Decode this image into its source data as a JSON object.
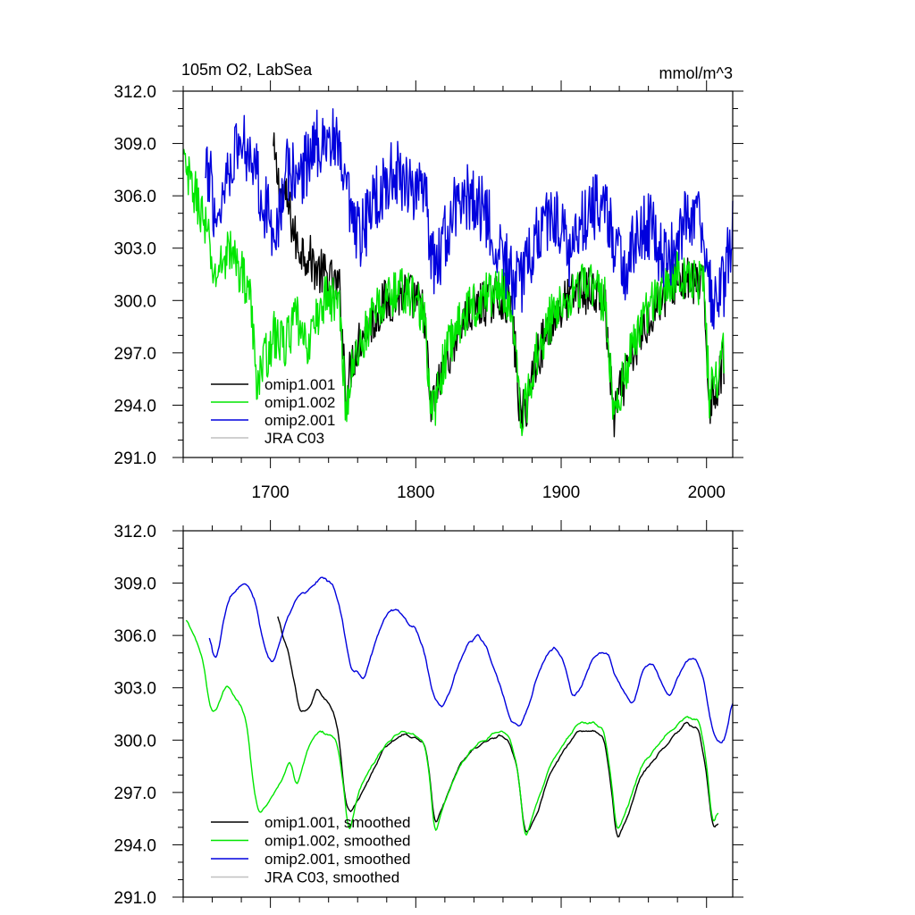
{
  "figure": {
    "title_left": "105m O2, LabSea",
    "title_right": "mmol/m^3"
  },
  "colors": {
    "omip1_001": "#000000",
    "omip1_002": "#00e600",
    "omip2_001": "#0000dd",
    "jra_c03": "#c0c0c0"
  },
  "chart_data": [
    {
      "type": "line",
      "panel": "top",
      "title": "105m O2, LabSea",
      "units": "mmol/m^3",
      "xlim": [
        1640,
        2018
      ],
      "ylim": [
        291.0,
        312.0
      ],
      "xticks": [
        1700,
        1800,
        1900,
        2000
      ],
      "xtick_labels": [
        "1700",
        "1800",
        "1900",
        "2000"
      ],
      "yticks": [
        291.0,
        294.0,
        297.0,
        300.0,
        303.0,
        306.0,
        309.0,
        312.0
      ],
      "ytick_labels": [
        "291.0",
        "294.0",
        "297.0",
        "300.0",
        "303.0",
        "306.0",
        "309.0",
        "312.0"
      ],
      "legend_position": "bottom-left",
      "series": [
        {
          "name": "omip1.001",
          "color_key": "omip1_001",
          "noise": 1.4,
          "x": [
            1702,
            1706,
            1712,
            1718,
            1724,
            1732,
            1740,
            1748,
            1752,
            1756,
            1762,
            1770,
            1778,
            1785,
            1792,
            1800,
            1806,
            1810,
            1814,
            1820,
            1830,
            1840,
            1850,
            1860,
            1866,
            1872,
            1876,
            1882,
            1892,
            1902,
            1912,
            1922,
            1930,
            1936,
            1940,
            1950,
            1960,
            1970,
            1980,
            1990,
            1998,
            2002,
            2006,
            2012
          ],
          "values": [
            308.5,
            306.5,
            305.5,
            303.2,
            302.8,
            301.8,
            301.2,
            300.5,
            294.5,
            296.5,
            298.0,
            298.8,
            299.8,
            300.2,
            300.4,
            300.0,
            299.2,
            293.8,
            294.5,
            296.5,
            298.5,
            299.5,
            300.0,
            300.3,
            299.5,
            293.2,
            294.0,
            296.5,
            298.5,
            299.8,
            300.6,
            300.5,
            299.8,
            293.2,
            294.5,
            297.0,
            299.0,
            300.3,
            301.2,
            301.0,
            300.6,
            294.2,
            294.8,
            296.5
          ]
        },
        {
          "name": "omip1.002",
          "color_key": "omip1_002",
          "noise": 1.4,
          "x": [
            1640,
            1643,
            1647,
            1652,
            1657,
            1661,
            1666,
            1671,
            1676,
            1681,
            1686,
            1690,
            1696,
            1702,
            1710,
            1718,
            1724,
            1730,
            1738,
            1744,
            1748,
            1752,
            1756,
            1762,
            1770,
            1778,
            1785,
            1792,
            1800,
            1806,
            1810,
            1814,
            1820,
            1830,
            1840,
            1850,
            1860,
            1866,
            1872,
            1876,
            1882,
            1892,
            1902,
            1912,
            1922,
            1930,
            1936,
            1940,
            1950,
            1960,
            1970,
            1980,
            1990,
            1998,
            2002,
            2006,
            2012
          ],
          "values": [
            308.0,
            307.0,
            306.4,
            305.2,
            303.6,
            301.3,
            302.0,
            303.0,
            302.2,
            301.5,
            300.5,
            295.5,
            296.5,
            298.0,
            297.5,
            299.0,
            297.2,
            298.5,
            300.3,
            300.0,
            299.5,
            293.5,
            296.0,
            297.5,
            299.0,
            300.0,
            300.4,
            300.6,
            300.0,
            299.2,
            293.4,
            294.2,
            296.8,
            298.8,
            299.8,
            300.4,
            300.6,
            299.8,
            293.2,
            294.0,
            296.8,
            298.8,
            300.2,
            300.9,
            300.8,
            300.0,
            293.6,
            294.8,
            297.5,
            299.5,
            300.8,
            301.5,
            301.4,
            300.9,
            294.6,
            295.2,
            297.0
          ]
        },
        {
          "name": "omip2.001",
          "color_key": "omip2_001",
          "noise": 2.0,
          "x": [
            1655,
            1659,
            1662,
            1667,
            1672,
            1680,
            1688,
            1694,
            1700,
            1705,
            1712,
            1720,
            1728,
            1736,
            1744,
            1752,
            1756,
            1762,
            1770,
            1780,
            1790,
            1800,
            1808,
            1812,
            1818,
            1828,
            1838,
            1848,
            1858,
            1866,
            1872,
            1878,
            1888,
            1898,
            1906,
            1912,
            1922,
            1932,
            1938,
            1944,
            1954,
            1964,
            1970,
            1976,
            1986,
            1994,
            2000,
            2004,
            2008,
            2012,
            2018
          ],
          "values": [
            306.5,
            307.5,
            304.5,
            306.0,
            308.0,
            309.0,
            308.5,
            306.0,
            304.5,
            304.5,
            307.5,
            307.0,
            308.5,
            309.5,
            309.0,
            306.5,
            304.0,
            303.5,
            305.5,
            307.0,
            307.2,
            306.5,
            305.0,
            302.0,
            303.0,
            305.5,
            306.0,
            305.0,
            303.0,
            301.0,
            301.0,
            302.5,
            304.5,
            305.0,
            302.5,
            304.0,
            305.5,
            305.0,
            302.5,
            302.0,
            304.0,
            304.2,
            302.0,
            302.5,
            304.8,
            304.5,
            303.0,
            299.5,
            300.0,
            300.8,
            304.5
          ]
        },
        {
          "name": "JRA C03",
          "color_key": "jra_c03",
          "x": [],
          "values": []
        }
      ]
    },
    {
      "type": "line",
      "panel": "bottom",
      "xlim": [
        1640,
        2018
      ],
      "ylim": [
        291.0,
        312.0
      ],
      "xticks": [
        1700,
        1800,
        1900,
        2000
      ],
      "yticks": [
        291.0,
        294.0,
        297.0,
        300.0,
        303.0,
        306.0,
        309.0,
        312.0
      ],
      "ytick_labels": [
        "291.0",
        "294.0",
        "297.0",
        "300.0",
        "303.0",
        "306.0",
        "309.0",
        "312.0"
      ],
      "legend_position": "bottom-left",
      "series": [
        {
          "name": "omip1.001, smoothed",
          "color_key": "omip1_001",
          "noise": 0.18,
          "x": [
            1705,
            1708,
            1712,
            1716,
            1720,
            1724,
            1728,
            1732,
            1736,
            1740,
            1744,
            1748,
            1751,
            1755,
            1760,
            1766,
            1772,
            1778,
            1785,
            1792,
            1800,
            1806,
            1809,
            1813,
            1820,
            1830,
            1840,
            1850,
            1858,
            1864,
            1870,
            1875,
            1882,
            1892,
            1902,
            1912,
            1922,
            1930,
            1935,
            1938,
            1945,
            1955,
            1965,
            1975,
            1985,
            1995,
            2000,
            2004,
            2008
          ],
          "values": [
            307.3,
            306.0,
            305.2,
            303.5,
            301.5,
            301.6,
            302.0,
            303.0,
            302.5,
            302.2,
            301.5,
            299.8,
            296.5,
            295.8,
            296.5,
            297.5,
            298.5,
            299.5,
            300.0,
            300.4,
            300.2,
            299.8,
            298.5,
            295.0,
            296.5,
            298.5,
            299.5,
            300.0,
            300.3,
            300.0,
            298.5,
            294.5,
            295.5,
            298.0,
            299.5,
            300.5,
            300.5,
            300.0,
            297.0,
            294.2,
            295.5,
            298.0,
            299.0,
            300.0,
            301.0,
            300.6,
            298.0,
            294.8,
            295.3
          ]
        },
        {
          "name": "omip1.002, smoothed",
          "color_key": "omip1_002",
          "noise": 0.18,
          "x": [
            1642,
            1648,
            1654,
            1658,
            1662,
            1666,
            1670,
            1675,
            1680,
            1684,
            1688,
            1692,
            1700,
            1708,
            1714,
            1718,
            1722,
            1728,
            1734,
            1740,
            1746,
            1750,
            1754,
            1760,
            1766,
            1772,
            1778,
            1785,
            1792,
            1800,
            1806,
            1809,
            1813,
            1820,
            1830,
            1840,
            1850,
            1858,
            1864,
            1870,
            1875,
            1882,
            1892,
            1902,
            1912,
            1922,
            1930,
            1935,
            1938,
            1945,
            1955,
            1965,
            1975,
            1985,
            1995,
            2000,
            2004,
            2008
          ],
          "values": [
            307.0,
            306.0,
            304.5,
            302.0,
            301.5,
            302.5,
            303.2,
            302.5,
            302.0,
            301.0,
            297.5,
            295.6,
            296.5,
            297.8,
            298.8,
            297.2,
            298.5,
            300.0,
            300.5,
            300.3,
            300.0,
            297.5,
            294.5,
            296.8,
            298.0,
            298.8,
            299.6,
            300.2,
            300.5,
            300.3,
            299.8,
            298.5,
            294.5,
            296.5,
            298.5,
            299.6,
            300.2,
            300.6,
            300.2,
            298.5,
            294.2,
            296.0,
            298.5,
            299.8,
            301.0,
            301.0,
            300.5,
            297.5,
            294.6,
            296.0,
            298.5,
            299.5,
            300.5,
            301.3,
            301.2,
            298.8,
            295.0,
            296.0
          ]
        },
        {
          "name": "omip2.001, smoothed",
          "color_key": "omip2_001",
          "noise": 0.22,
          "x": [
            1658,
            1661,
            1664,
            1668,
            1672,
            1678,
            1684,
            1690,
            1694,
            1698,
            1702,
            1706,
            1712,
            1718,
            1724,
            1730,
            1736,
            1742,
            1748,
            1752,
            1756,
            1760,
            1764,
            1770,
            1776,
            1782,
            1788,
            1794,
            1800,
            1806,
            1812,
            1818,
            1824,
            1830,
            1836,
            1842,
            1848,
            1854,
            1860,
            1866,
            1872,
            1878,
            1884,
            1890,
            1896,
            1902,
            1908,
            1914,
            1920,
            1926,
            1932,
            1938,
            1944,
            1950,
            1956,
            1962,
            1968,
            1974,
            1980,
            1986,
            1992,
            1998,
            2002,
            2006,
            2010,
            2014,
            2018
          ],
          "values": [
            306.3,
            304.5,
            305.0,
            307.0,
            308.2,
            308.8,
            309.0,
            308.0,
            306.0,
            304.8,
            304.5,
            305.5,
            307.0,
            308.3,
            308.5,
            309.0,
            309.4,
            309.0,
            307.5,
            305.5,
            304.0,
            303.8,
            303.5,
            305.0,
            306.5,
            307.5,
            307.5,
            306.8,
            306.5,
            305.0,
            302.5,
            301.8,
            302.8,
            304.5,
            305.5,
            306.0,
            305.5,
            304.0,
            302.5,
            301.0,
            300.8,
            302.0,
            303.8,
            304.8,
            305.3,
            304.5,
            302.5,
            303.0,
            304.5,
            305.0,
            305.0,
            303.5,
            302.5,
            302.0,
            304.0,
            304.5,
            303.5,
            302.3,
            303.5,
            304.6,
            304.7,
            303.5,
            301.5,
            300.0,
            299.8,
            300.5,
            302.5
          ]
        },
        {
          "name": "JRA C03, smoothed",
          "color_key": "jra_c03",
          "x": [],
          "values": []
        }
      ]
    }
  ]
}
